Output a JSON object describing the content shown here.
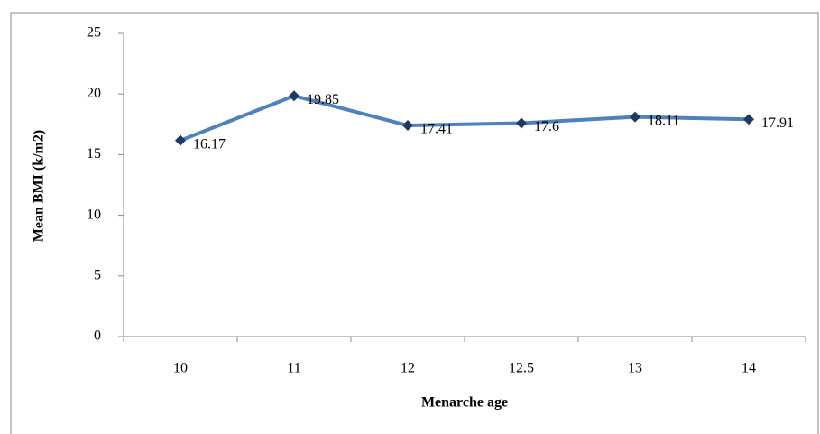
{
  "chart_data": {
    "type": "line",
    "x_label": "Menarche age",
    "y_label": "Mean BMI (k/m2)",
    "categories": [
      "10",
      "11",
      "12",
      "12.5",
      "13",
      "14"
    ],
    "values": [
      16.17,
      19.85,
      17.41,
      17.6,
      18.11,
      17.91
    ],
    "color": "#4f81bd",
    "marker_color": "#1f3864",
    "ylim": [
      0,
      25
    ],
    "yticks": [
      0,
      5,
      10,
      15,
      20,
      25
    ],
    "grid": false
  }
}
